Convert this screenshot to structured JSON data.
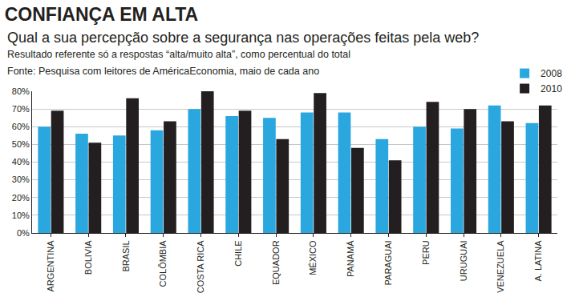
{
  "chart_data": {
    "type": "bar",
    "title": "CONFIANÇA EM ALTA",
    "subtitle": "Qual a sua percepção sobre a segurança nas operações feitas pela web?",
    "annotations": [
      "Resultado referente só a respostas “alta/muito alta”, como percentual do total",
      "Fonte: Pesquisa com leitores de AméricaEconomia, maio de cada ano"
    ],
    "categories": [
      "ARGENTINA",
      "BOLIVIA",
      "BRASIL",
      "COLÔMBIA",
      "COSTA RICA",
      "CHILE",
      "EQUADOR",
      "MÉXICO",
      "PANAMÁ",
      "PARAGUAI",
      "PERU",
      "URUGUAI",
      "VENEZUELA",
      "A. LATINA"
    ],
    "series": [
      {
        "name": "2008",
        "color": "#2aa7df",
        "values": [
          60,
          56,
          55,
          58,
          70,
          66,
          65,
          68,
          68,
          53,
          60,
          59,
          72,
          62
        ]
      },
      {
        "name": "2010",
        "color": "#231f20",
        "values": [
          69,
          51,
          76,
          63,
          80,
          69,
          53,
          79,
          48,
          41,
          74,
          70,
          63,
          72
        ]
      }
    ],
    "ylim": [
      0,
      80
    ],
    "yticks": [
      {
        "value": 0,
        "label": "0%"
      },
      {
        "value": 10,
        "label": "10%"
      },
      {
        "value": 20,
        "label": "20%"
      },
      {
        "value": 30,
        "label": "30%"
      },
      {
        "value": 40,
        "label": "40%"
      },
      {
        "value": 50,
        "label": "50%"
      },
      {
        "value": 60,
        "label": "60%"
      },
      {
        "value": 70,
        "label": "70%"
      },
      {
        "value": 80,
        "label": "80%"
      }
    ],
    "grid": true,
    "legend": "top right"
  }
}
